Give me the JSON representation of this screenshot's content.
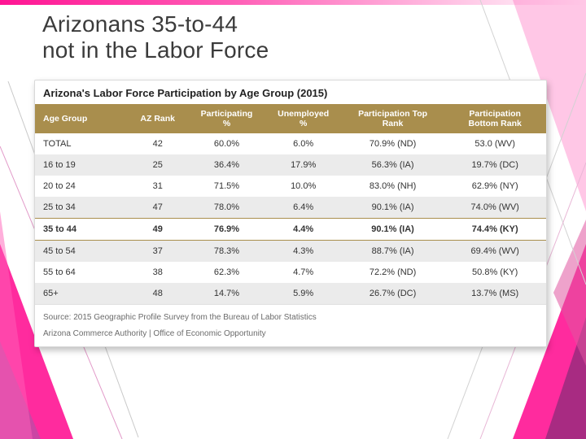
{
  "slide": {
    "title_line1": "Arizonans 35-to-44",
    "title_line2": "not in the Labor Force"
  },
  "table": {
    "heading": "Arizona's Labor Force Participation by Age Group (2015)",
    "columns": [
      "Age Group",
      "AZ Rank",
      "Participating\n%",
      "Unemployed\n%",
      "Participation Top\nRank",
      "Participation\nBottom Rank"
    ],
    "rows": [
      {
        "cells": [
          "TOTAL",
          "42",
          "60.0%",
          "6.0%",
          "70.9% (ND)",
          "53.0 (WV)"
        ],
        "kind": "total"
      },
      {
        "cells": [
          "16 to 19",
          "25",
          "36.4%",
          "17.9%",
          "56.3% (IA)",
          "19.7% (DC)"
        ],
        "kind": ""
      },
      {
        "cells": [
          "20 to 24",
          "31",
          "71.5%",
          "10.0%",
          "83.0% (NH)",
          "62.9% (NY)"
        ],
        "kind": ""
      },
      {
        "cells": [
          "25 to 34",
          "47",
          "78.0%",
          "6.4%",
          "90.1% (IA)",
          "74.0% (WV)"
        ],
        "kind": ""
      },
      {
        "cells": [
          "35 to 44",
          "49",
          "76.9%",
          "4.4%",
          "90.1% (IA)",
          "74.4% (KY)"
        ],
        "kind": "highlight"
      },
      {
        "cells": [
          "45 to 54",
          "37",
          "78.3%",
          "4.3%",
          "88.7% (IA)",
          "69.4% (WV)"
        ],
        "kind": ""
      },
      {
        "cells": [
          "55 to 64",
          "38",
          "62.3%",
          "4.7%",
          "72.2% (ND)",
          "50.8% (KY)"
        ],
        "kind": ""
      },
      {
        "cells": [
          "65+",
          "48",
          "14.7%",
          "5.9%",
          "26.7% (DC)",
          "13.7% (MS)"
        ],
        "kind": ""
      }
    ],
    "col_widths_pct": [
      18,
      12,
      15,
      15,
      20,
      20
    ],
    "source": "Source: 2015 Geographic Profile Survey from the Bureau of Labor Statistics",
    "footer_org": "Arizona Commerce Authority | Office of Economic Opportunity",
    "header_bg": "#a98e4d",
    "header_fg": "#ffffff",
    "row_alt_bg": "#ebebeb",
    "highlight_border": "#a98e4d"
  },
  "deco": {
    "accent_colors": [
      "#ff1493",
      "#ff5fb7",
      "#c24aa4",
      "#9e2b7e"
    ]
  }
}
